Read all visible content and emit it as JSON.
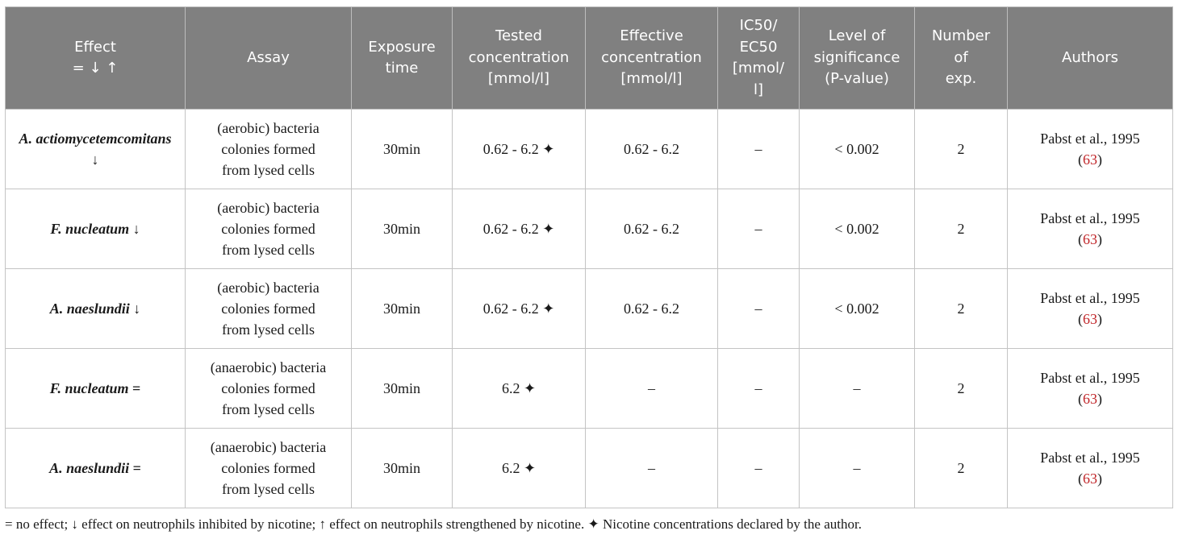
{
  "headers": [
    [
      "Effect",
      "= ↓ ↑"
    ],
    [
      "Assay"
    ],
    [
      "Exposure",
      "time"
    ],
    [
      "Tested",
      "concentration",
      "[mmol/l]"
    ],
    [
      "Effective",
      "concentration",
      "[mmol/l]"
    ],
    [
      "IC50/",
      "EC50",
      "[mmol/",
      "l]"
    ],
    [
      "Level of",
      "significance",
      "(P-value)"
    ],
    [
      "Number",
      "of",
      "exp."
    ],
    [
      "Authors"
    ]
  ],
  "rows": [
    {
      "effect_species": "A. actiomycetemcomitans",
      "effect_symbol": "↓",
      "assay": [
        "(aerobic) bacteria",
        "colonies formed",
        "from lysed cells"
      ],
      "exposure": "30min",
      "tested": "0.62 - 6.2 ✦",
      "effective": "0.62 - 6.2",
      "ic50": "–",
      "significance": "< 0.002",
      "number": "2",
      "authors": "Pabst et al., 1995",
      "ref": "63"
    },
    {
      "effect_species": "F. nucleatum",
      "effect_symbol": "↓",
      "assay": [
        "(aerobic) bacteria",
        "colonies formed",
        "from lysed cells"
      ],
      "exposure": "30min",
      "tested": "0.62 - 6.2 ✦",
      "effective": "0.62 - 6.2",
      "ic50": "–",
      "significance": "< 0.002",
      "number": "2",
      "authors": "Pabst et al., 1995",
      "ref": "63"
    },
    {
      "effect_species": "A. naeslundii",
      "effect_symbol": "↓",
      "assay": [
        "(aerobic) bacteria",
        "colonies formed",
        "from lysed cells"
      ],
      "exposure": "30min",
      "tested": "0.62 - 6.2 ✦",
      "effective": "0.62 - 6.2",
      "ic50": "–",
      "significance": "< 0.002",
      "number": "2",
      "authors": "Pabst et al., 1995",
      "ref": "63"
    },
    {
      "effect_species": "F. nucleatum",
      "effect_symbol": "=",
      "assay": [
        "(anaerobic) bacteria",
        "colonies formed",
        "from lysed cells"
      ],
      "exposure": "30min",
      "tested": "6.2 ✦",
      "effective": "–",
      "ic50": "–",
      "significance": "–",
      "number": "2",
      "authors": "Pabst et al., 1995",
      "ref": "63"
    },
    {
      "effect_species": "A. naeslundii",
      "effect_symbol": "=",
      "assay": [
        "(anaerobic) bacteria",
        "colonies formed",
        "from lysed cells"
      ],
      "exposure": "30min",
      "tested": "6.2 ✦",
      "effective": "–",
      "ic50": "–",
      "significance": "–",
      "number": "2",
      "authors": "Pabst et al., 1995",
      "ref": "63"
    }
  ],
  "footnote": "= no effect; ↓ effect on neutrophils inhibited by nicotine; ↑ effect on neutrophils strengthened by nicotine. ✦ Nicotine concentrations declared by the author."
}
